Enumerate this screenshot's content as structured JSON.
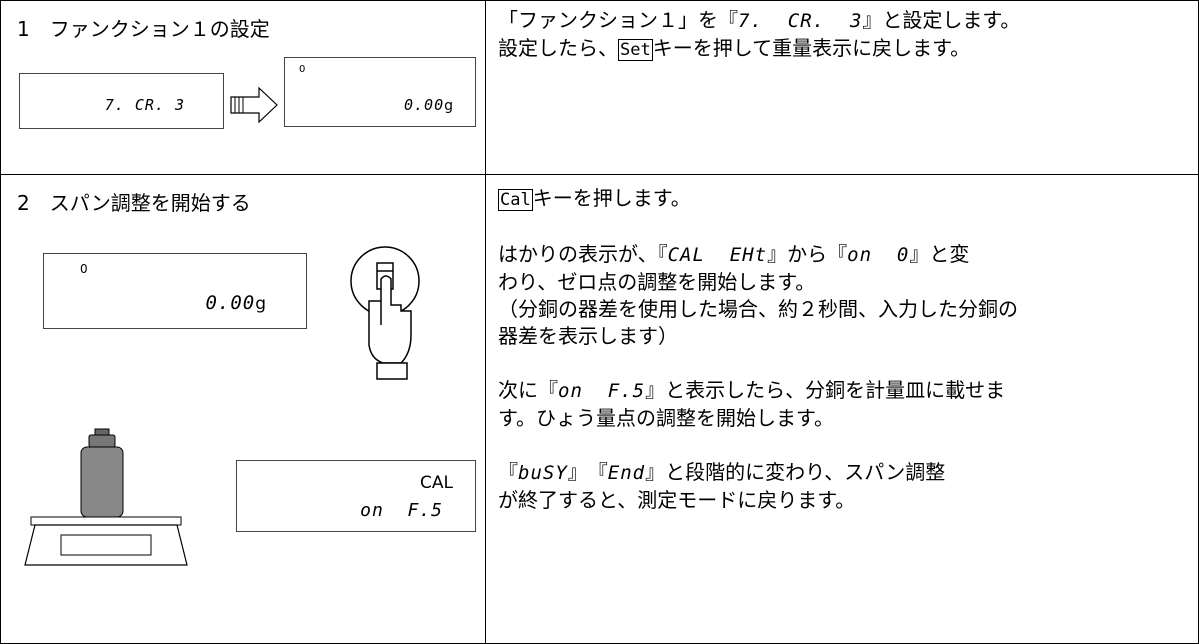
{
  "rows": [
    {
      "left": {
        "title": "1　ファンクション１の設定",
        "displays": [
          {
            "main": "7. CR. 3"
          },
          {
            "mark": "0",
            "main": "0.00",
            "unit": "g"
          }
        ]
      },
      "right": {
        "paragraphs": [
          [
            [
              {
                "text": "「ファンクション１」を『"
              },
              {
                "display": "7.  CR.  3"
              },
              {
                "text": "』と設定します。"
              }
            ],
            [
              {
                "text": "設定したら、"
              },
              {
                "key": "Set"
              },
              {
                "text": "キーを押して重量表示に戻します。"
              }
            ]
          ]
        ]
      }
    },
    {
      "left": {
        "title": "2　スパン調整を開始する",
        "displays": [
          {
            "mark": "0",
            "main": "0.00",
            "unit": "g"
          },
          {
            "mark": "CAL",
            "main": "on  F.5"
          }
        ]
      },
      "right": {
        "paragraphs": [
          [
            [
              {
                "key": "Cal"
              },
              {
                "text": "キーを押します。"
              }
            ]
          ],
          [
            [
              {
                "text": "はかりの表示が、『"
              },
              {
                "display": "CAL  EHt"
              },
              {
                "text": "』から『"
              },
              {
                "display": "on  0"
              },
              {
                "text": "』と変"
              }
            ],
            [
              {
                "text": "わり、ゼロ点の調整を開始します。"
              }
            ],
            [
              {
                "text": "（分銅の器差を使用した場合、約２秒間、入力した分銅の"
              }
            ],
            [
              {
                "text": "器差を表示します）"
              }
            ]
          ],
          [
            [
              {
                "text": "次に『"
              },
              {
                "display": "on  F.5"
              },
              {
                "text": "』と表示したら、分銅を計量皿に載せま"
              }
            ],
            [
              {
                "text": "す。ひょう量点の調整を開始します。"
              }
            ]
          ],
          [
            [
              {
                "text": "『"
              },
              {
                "display": "buSY"
              },
              {
                "text": "』　『"
              },
              {
                "display": "End"
              },
              {
                "text": "』と段階的に変わり、スパン調整"
              }
            ],
            [
              {
                "text": "が終了すると、測定モードに戻ります。"
              }
            ]
          ]
        ]
      }
    }
  ]
}
